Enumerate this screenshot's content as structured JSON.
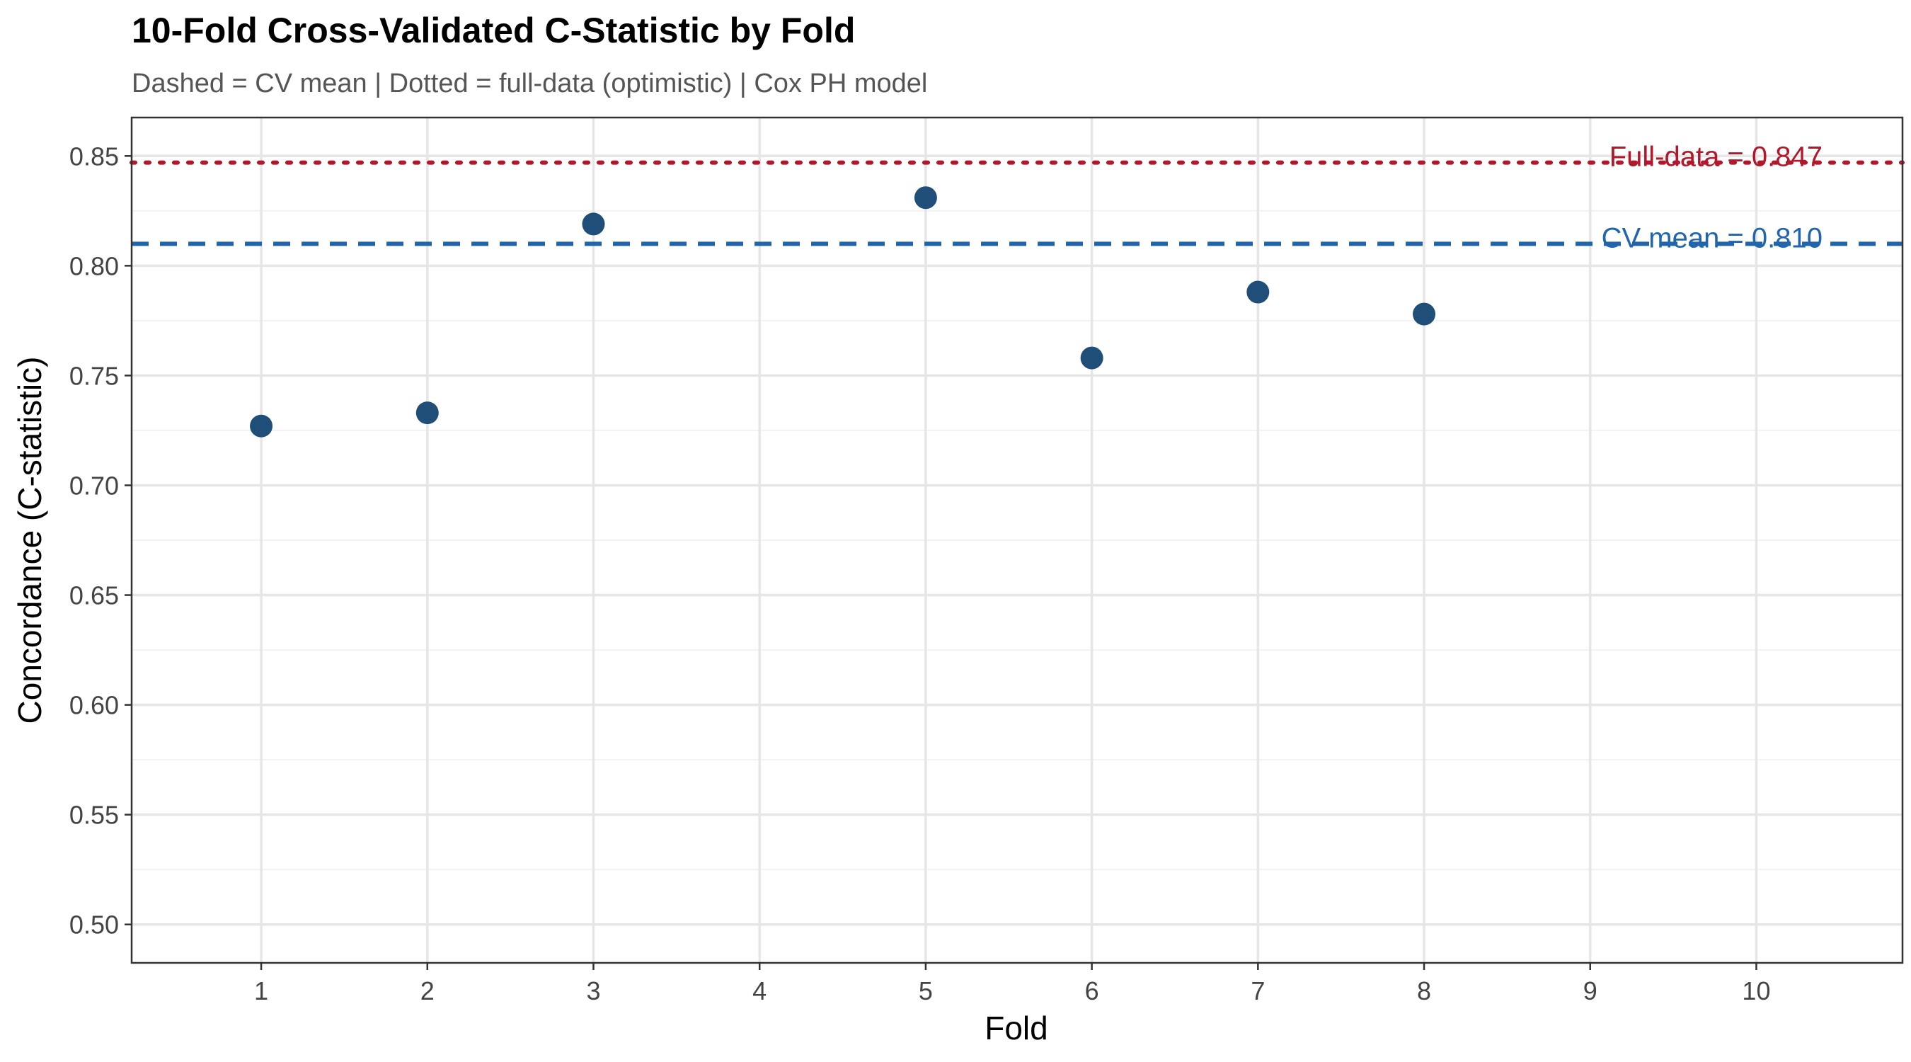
{
  "chart_data": {
    "type": "scatter",
    "title": "10-Fold Cross-Validated C-Statistic by Fold",
    "subtitle": "Dashed = CV mean | Dotted = full-data (optimistic) | Cox PH model",
    "xlabel": "Fold",
    "ylabel": "Concordance (C-statistic)",
    "xlim": [
      0.22,
      10.88
    ],
    "ylim": [
      0.4825,
      0.8675
    ],
    "x_ticks": [
      1,
      2,
      3,
      4,
      5,
      6,
      7,
      8,
      9,
      10
    ],
    "y_ticks": [
      0.5,
      0.55,
      0.6,
      0.65,
      0.7,
      0.75,
      0.8,
      0.85
    ],
    "y_tick_labels": [
      "0.50",
      "0.55",
      "0.60",
      "0.65",
      "0.70",
      "0.75",
      "0.80",
      "0.85"
    ],
    "grid": true,
    "points": [
      {
        "x": 1,
        "y": 0.727
      },
      {
        "x": 2,
        "y": 0.733
      },
      {
        "x": 3,
        "y": 0.819
      },
      {
        "x": 5,
        "y": 0.831
      },
      {
        "x": 6,
        "y": 0.758
      },
      {
        "x": 7,
        "y": 0.788
      },
      {
        "x": 8,
        "y": 0.778
      }
    ],
    "point_color": "#1f4e79",
    "reference_lines": [
      {
        "kind": "cv-mean",
        "y": 0.81,
        "style": "dashed",
        "color": "#2166ac",
        "label": "CV mean = 0.810"
      },
      {
        "kind": "full-data",
        "y": 0.847,
        "style": "dotted",
        "color": "#b2182b",
        "label": "Full-data = 0.847"
      }
    ]
  }
}
